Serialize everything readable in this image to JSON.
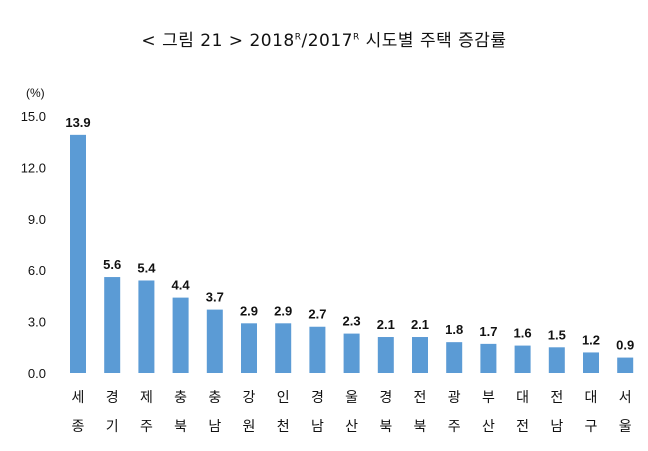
{
  "chart_data": {
    "type": "bar",
    "title": {
      "prefix": "< 그림 21 > ",
      "year1": "2018",
      "mark1": "R",
      "sep": "/",
      "year2": "2017",
      "mark2": "R",
      "suffix": " 시도별 주택 증감률"
    },
    "unit_label": "(%)",
    "categories": [
      [
        "세",
        "종"
      ],
      [
        "경",
        "기"
      ],
      [
        "제",
        "주"
      ],
      [
        "충",
        "북"
      ],
      [
        "충",
        "남"
      ],
      [
        "강",
        "원"
      ],
      [
        "인",
        "천"
      ],
      [
        "경",
        "남"
      ],
      [
        "울",
        "산"
      ],
      [
        "경",
        "북"
      ],
      [
        "전",
        "북"
      ],
      [
        "광",
        "주"
      ],
      [
        "부",
        "산"
      ],
      [
        "대",
        "전"
      ],
      [
        "전",
        "남"
      ],
      [
        "대",
        "구"
      ],
      [
        "서",
        "울"
      ]
    ],
    "values": [
      13.9,
      5.6,
      5.4,
      4.4,
      3.7,
      2.9,
      2.9,
      2.7,
      2.3,
      2.1,
      2.1,
      1.8,
      1.7,
      1.6,
      1.5,
      1.2,
      0.9
    ],
    "value_labels": [
      "13.9",
      "5.6",
      "5.4",
      "4.4",
      "3.7",
      "2.9",
      "2.9",
      "2.7",
      "2.3",
      "2.1",
      "2.1",
      "1.8",
      "1.7",
      "1.6",
      "1.5",
      "1.2",
      "0.9"
    ],
    "yticks": [
      "0.0",
      "3.0",
      "6.0",
      "9.0",
      "12.0",
      "15.0"
    ],
    "ylim": [
      0,
      15
    ],
    "grid": false,
    "bar_color": "#5b9bd5"
  }
}
